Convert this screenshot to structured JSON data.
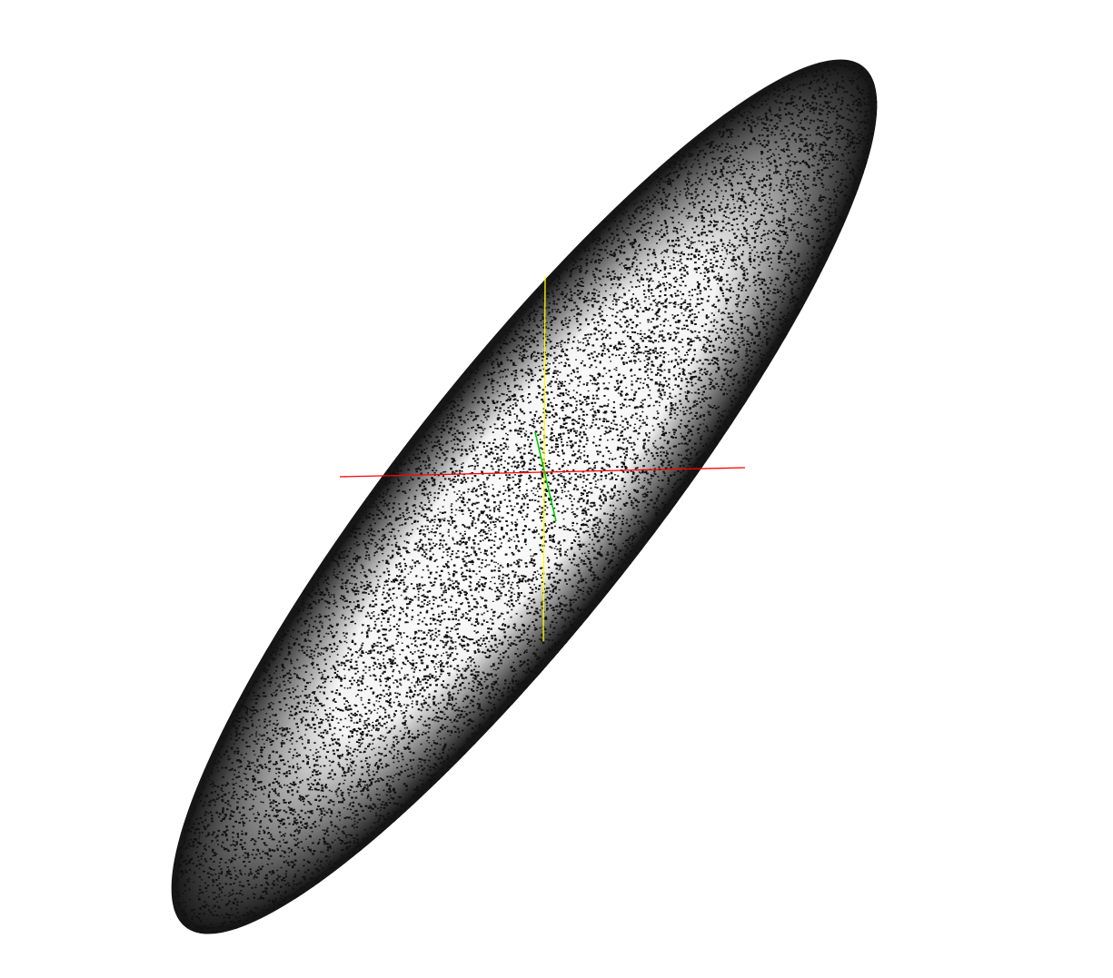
{
  "scene": {
    "object": "ellipsoid-point-cloud",
    "background_color": "#ffffff",
    "point_color": "#111111",
    "axes": [
      {
        "name": "x-axis",
        "color": "#ff0000"
      },
      {
        "name": "y-axis",
        "color": "#ffff00"
      },
      {
        "name": "z-axis",
        "color": "#00cc00"
      }
    ]
  }
}
